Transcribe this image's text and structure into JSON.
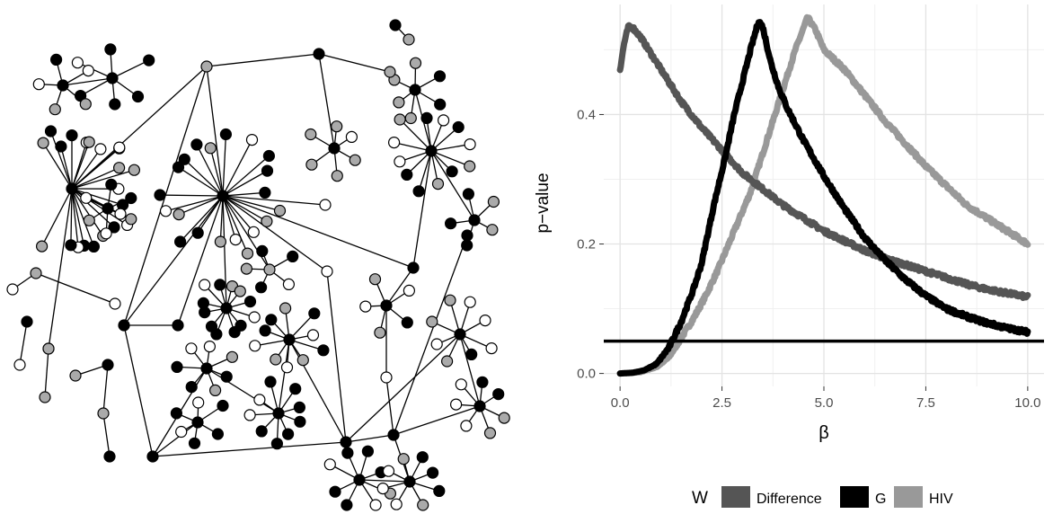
{
  "chart_data": [
    {
      "type": "network",
      "node_colors": {
        "black": "#000000",
        "grey": "#aaaaaa",
        "white": "#ffffff"
      },
      "node_counts": {
        "total": 420
      }
    },
    {
      "type": "line",
      "ylabel": "p−value",
      "xlabel": "β",
      "xlim": [
        -0.4,
        10.4
      ],
      "ylim": [
        -0.02,
        0.57
      ],
      "x_ticks": [
        "0.0",
        "2.5",
        "5.0",
        "7.5",
        "10.0"
      ],
      "y_ticks": [
        "0.0",
        "0.2",
        "0.4"
      ],
      "x_tick_values": [
        0,
        2.5,
        5,
        7.5,
        10
      ],
      "y_tick_values": [
        0,
        0.2,
        0.4
      ],
      "hline": 0.05,
      "grid": true,
      "legend": {
        "title": "W",
        "position": "bottom",
        "items": [
          {
            "name": "Difference",
            "color": "#555555"
          },
          {
            "name": "G",
            "color": "#000000"
          },
          {
            "name": "HIV",
            "color": "#999999"
          }
        ]
      },
      "series": [
        {
          "name": "Difference",
          "color": "#555555",
          "points": [
            [
              0,
              0.47
            ],
            [
              0.1,
              0.51
            ],
            [
              0.2,
              0.535
            ],
            [
              0.3,
              0.535
            ],
            [
              0.5,
              0.52
            ],
            [
              0.8,
              0.49
            ],
            [
              1,
              0.47
            ],
            [
              1.5,
              0.42
            ],
            [
              2,
              0.38
            ],
            [
              2.5,
              0.345
            ],
            [
              3,
              0.31
            ],
            [
              3.5,
              0.285
            ],
            [
              4,
              0.26
            ],
            [
              4.5,
              0.24
            ],
            [
              5,
              0.22
            ],
            [
              5.5,
              0.205
            ],
            [
              6,
              0.19
            ],
            [
              6.5,
              0.178
            ],
            [
              7,
              0.168
            ],
            [
              7.5,
              0.158
            ],
            [
              8,
              0.148
            ],
            [
              8.5,
              0.138
            ],
            [
              9,
              0.13
            ],
            [
              9.5,
              0.124
            ],
            [
              10,
              0.118
            ]
          ]
        },
        {
          "name": "G",
          "color": "#000000",
          "points": [
            [
              0,
              0
            ],
            [
              0.3,
              0.001
            ],
            [
              0.6,
              0.005
            ],
            [
              0.9,
              0.015
            ],
            [
              1.2,
              0.04
            ],
            [
              1.5,
              0.08
            ],
            [
              1.8,
              0.13
            ],
            [
              2,
              0.17
            ],
            [
              2.3,
              0.26
            ],
            [
              2.6,
              0.34
            ],
            [
              2.8,
              0.4
            ],
            [
              3,
              0.45
            ],
            [
              3.2,
              0.5
            ],
            [
              3.4,
              0.545
            ],
            [
              3.5,
              0.535
            ],
            [
              3.7,
              0.48
            ],
            [
              3.9,
              0.44
            ],
            [
              4.1,
              0.41
            ],
            [
              4.5,
              0.36
            ],
            [
              5,
              0.305
            ],
            [
              5.5,
              0.255
            ],
            [
              6,
              0.21
            ],
            [
              6.5,
              0.175
            ],
            [
              7,
              0.145
            ],
            [
              7.5,
              0.12
            ],
            [
              8,
              0.1
            ],
            [
              8.5,
              0.088
            ],
            [
              9,
              0.078
            ],
            [
              9.5,
              0.07
            ],
            [
              10,
              0.064
            ]
          ]
        },
        {
          "name": "HIV",
          "color": "#999999",
          "points": [
            [
              0,
              0
            ],
            [
              0.5,
              0.002
            ],
            [
              0.9,
              0.01
            ],
            [
              1.2,
              0.025
            ],
            [
              1.5,
              0.055
            ],
            [
              1.8,
              0.085
            ],
            [
              2.1,
              0.12
            ],
            [
              2.4,
              0.16
            ],
            [
              2.8,
              0.22
            ],
            [
              3.2,
              0.28
            ],
            [
              3.6,
              0.36
            ],
            [
              4,
              0.44
            ],
            [
              4.3,
              0.5
            ],
            [
              4.6,
              0.55
            ],
            [
              4.8,
              0.53
            ],
            [
              5,
              0.5
            ],
            [
              5.5,
              0.47
            ],
            [
              6,
              0.43
            ],
            [
              6.5,
              0.39
            ],
            [
              7,
              0.355
            ],
            [
              7.5,
              0.32
            ],
            [
              8,
              0.29
            ],
            [
              8.5,
              0.26
            ],
            [
              9,
              0.24
            ],
            [
              9.5,
              0.22
            ],
            [
              10,
              0.2
            ]
          ]
        }
      ]
    }
  ]
}
